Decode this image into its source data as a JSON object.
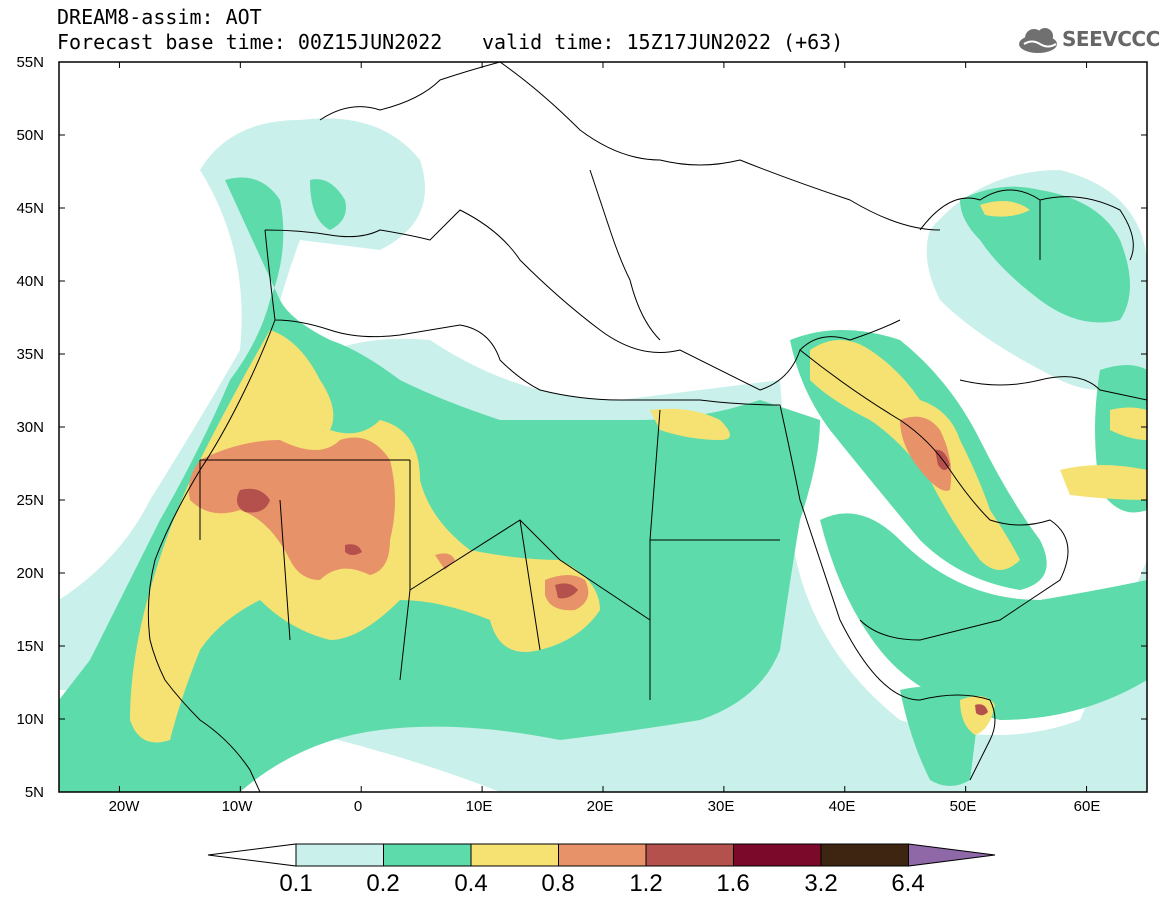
{
  "header": {
    "title": "DREAM8-assim: AOT",
    "base_time": "Forecast base time: 00Z15JUN2022",
    "valid_time": "valid time: 15Z17JUN2022 (+63)",
    "logo_text": "SEEVCCC"
  },
  "map": {
    "lat_labels": [
      "55N",
      "50N",
      "45N",
      "40N",
      "35N",
      "30N",
      "25N",
      "20N",
      "15N",
      "10N",
      "5N"
    ],
    "lon_labels": [
      "20W",
      "10W",
      "0",
      "10E",
      "20E",
      "30E",
      "40E",
      "50E",
      "60E"
    ],
    "lon_range": [
      -25,
      65
    ],
    "lat_range": [
      5,
      55
    ]
  },
  "colorbar": {
    "labels": [
      "0.1",
      "0.2",
      "0.4",
      "0.8",
      "1.2",
      "1.6",
      "3.2",
      "6.4"
    ],
    "colors": [
      "#ffffff",
      "#c9f0ea",
      "#5ddbaa",
      "#f5e273",
      "#e89269",
      "#b5514d",
      "#7b0a2a",
      "#3e2512",
      "#8f68a8"
    ]
  },
  "colors": {
    "c1": "#c9f0ea",
    "c2": "#5ddbaa",
    "c3": "#f5e273",
    "c4": "#e89269",
    "c5": "#b5514d"
  }
}
